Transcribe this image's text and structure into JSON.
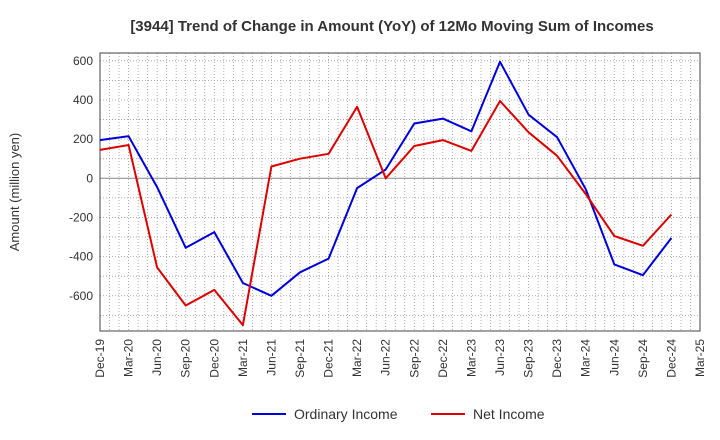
{
  "chart_data": {
    "type": "line",
    "title": "[3944]  Trend of Change in Amount (YoY) of 12Mo Moving Sum of Incomes",
    "xlabel": "",
    "ylabel": "Amount (million yen)",
    "categories": [
      "Dec-19",
      "Mar-20",
      "Jun-20",
      "Sep-20",
      "Dec-20",
      "Mar-21",
      "Jun-21",
      "Sep-21",
      "Dec-21",
      "Mar-22",
      "Jun-22",
      "Sep-22",
      "Dec-22",
      "Mar-23",
      "Jun-23",
      "Sep-23",
      "Dec-23",
      "Mar-24",
      "Jun-24",
      "Sep-24",
      "Dec-24",
      "Mar-25"
    ],
    "ylim": [
      -780,
      640
    ],
    "yticks": [
      600,
      400,
      200,
      0,
      -200,
      -400,
      -600
    ],
    "grid": true,
    "legend_position": "bottom",
    "series": [
      {
        "name": "Ordinary Income",
        "color": "#0000dd",
        "values": [
          195,
          215,
          -45,
          -355,
          -275,
          -535,
          -600,
          -480,
          -410,
          -50,
          45,
          280,
          305,
          240,
          595,
          325,
          210,
          -55,
          -440,
          -495,
          -305,
          null
        ]
      },
      {
        "name": "Net Income",
        "color": "#dd0000",
        "values": [
          145,
          170,
          -455,
          -650,
          -570,
          -750,
          60,
          100,
          125,
          365,
          0,
          165,
          195,
          140,
          395,
          235,
          115,
          -80,
          -295,
          -345,
          -185,
          null
        ]
      }
    ]
  }
}
